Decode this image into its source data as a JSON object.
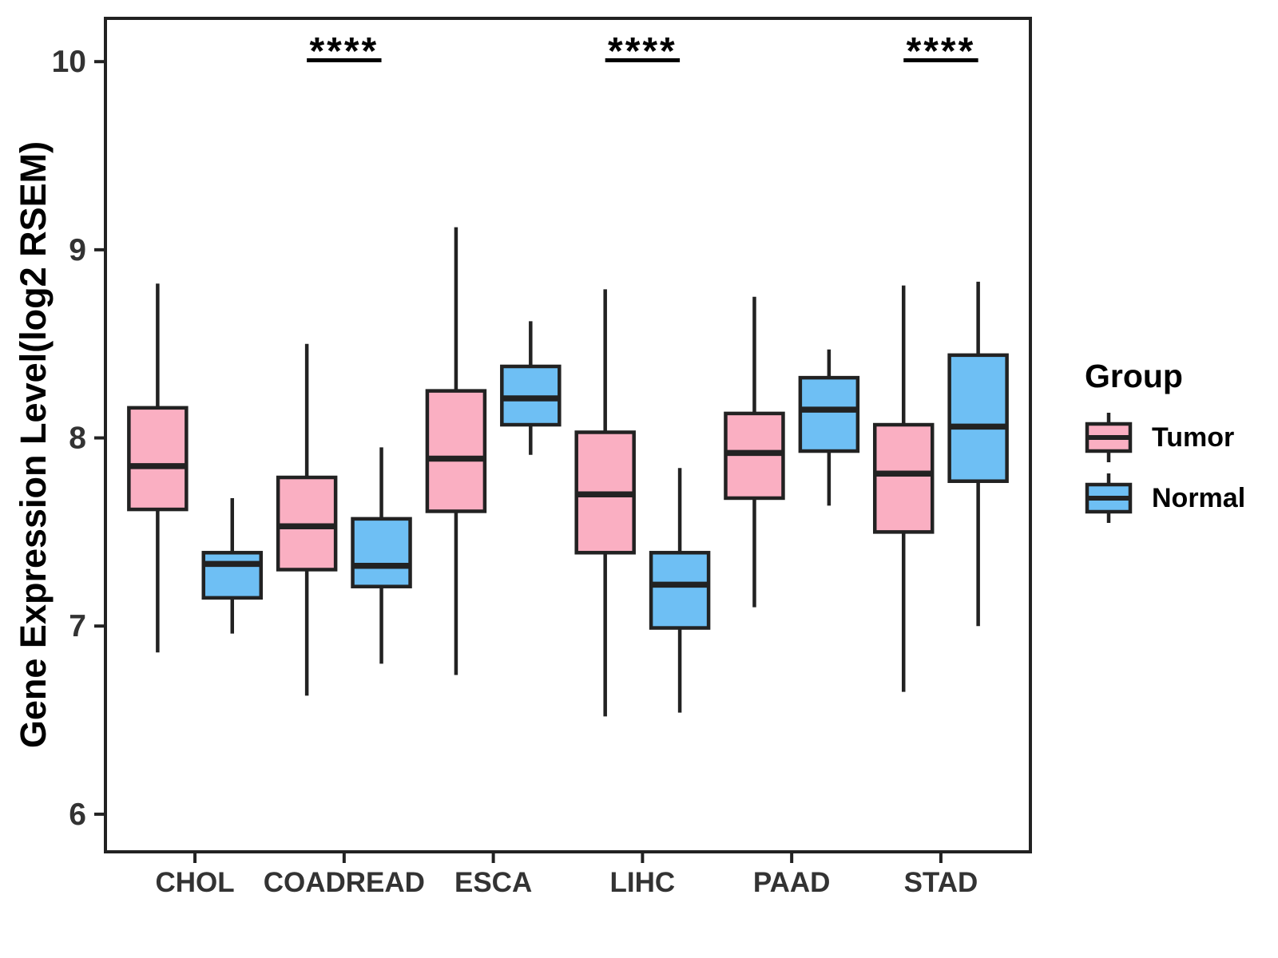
{
  "chart_data": {
    "type": "boxplot",
    "title": "",
    "xlabel": "",
    "ylabel": "Gene Expression Level(log2 RSEM)",
    "categories": [
      "CHOL",
      "COADREAD",
      "ESCA",
      "LIHC",
      "PAAD",
      "STAD"
    ],
    "y_ticks": [
      6,
      7,
      8,
      9,
      10
    ],
    "ylim": [
      5.8,
      10.23
    ],
    "grid": "off",
    "legend_position": "right",
    "legend_title": "Group",
    "series": [
      {
        "name": "Tumor",
        "color": "#FAAFC2",
        "boxes": [
          {
            "min": 6.86,
            "q1": 7.62,
            "median": 7.85,
            "q3": 8.16,
            "max": 8.82
          },
          {
            "min": 6.63,
            "q1": 7.3,
            "median": 7.53,
            "q3": 7.79,
            "max": 8.5
          },
          {
            "min": 6.74,
            "q1": 7.61,
            "median": 7.89,
            "q3": 8.25,
            "max": 9.12
          },
          {
            "min": 6.52,
            "q1": 7.39,
            "median": 7.7,
            "q3": 8.03,
            "max": 8.79
          },
          {
            "min": 7.1,
            "q1": 7.68,
            "median": 7.92,
            "q3": 8.13,
            "max": 8.75
          },
          {
            "min": 6.65,
            "q1": 7.5,
            "median": 7.81,
            "q3": 8.07,
            "max": 8.81
          }
        ]
      },
      {
        "name": "Normal",
        "color": "#6EBFF4",
        "boxes": [
          {
            "min": 6.96,
            "q1": 7.15,
            "median": 7.33,
            "q3": 7.39,
            "max": 7.68
          },
          {
            "min": 6.8,
            "q1": 7.21,
            "median": 7.32,
            "q3": 7.57,
            "max": 7.95
          },
          {
            "min": 7.91,
            "q1": 8.07,
            "median": 8.21,
            "q3": 8.38,
            "max": 8.62
          },
          {
            "min": 6.54,
            "q1": 6.99,
            "median": 7.22,
            "q3": 7.39,
            "max": 7.84
          },
          {
            "min": 7.64,
            "q1": 7.93,
            "median": 8.15,
            "q3": 8.32,
            "max": 8.47
          },
          {
            "min": 7.0,
            "q1": 7.77,
            "median": 8.06,
            "q3": 8.44,
            "max": 8.83
          }
        ]
      }
    ],
    "significance": [
      {
        "category": "COADREAD",
        "label": "****"
      },
      {
        "category": "LIHC",
        "label": "****"
      },
      {
        "category": "STAD",
        "label": "****"
      }
    ],
    "colors": {
      "line": "#222222",
      "tick_text": "#333333",
      "title_text": "#000000"
    }
  }
}
